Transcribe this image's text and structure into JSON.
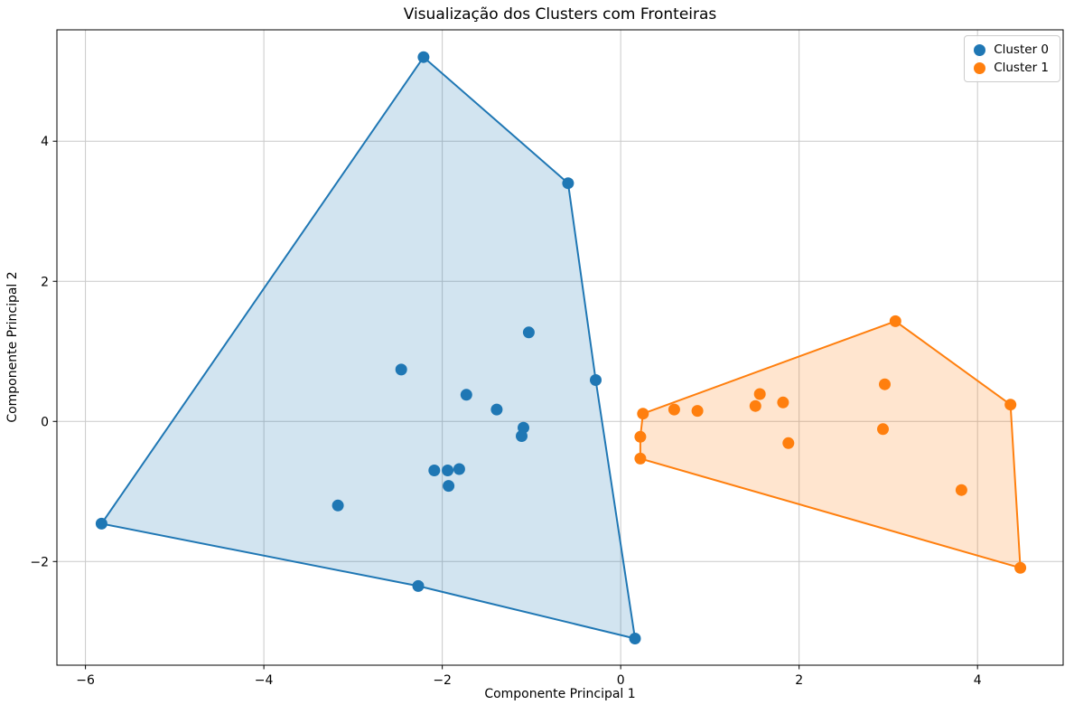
{
  "chart_data": {
    "type": "scatter",
    "title": "Visualização dos Clusters com Fronteiras",
    "xlabel": "Componente Principal 1",
    "ylabel": "Componente Principal 2",
    "xlim": [
      -6.32,
      4.96
    ],
    "ylim": [
      -3.48,
      5.59
    ],
    "grid": true,
    "legend_position": "upper right",
    "background_color": "#ffffff",
    "grid_color": "#c9c9c9",
    "spine_color": "#000000",
    "hull_fill_opacity": 0.2,
    "marker_radius": 6.5,
    "xticks": {
      "values": [
        -6,
        -4,
        -2,
        0,
        2,
        4
      ],
      "labels": [
        "−6",
        "−4",
        "−2",
        "0",
        "2",
        "4"
      ]
    },
    "yticks": {
      "values": [
        4,
        2,
        0,
        -2
      ],
      "labels": [
        "4",
        "2",
        "0",
        "−2"
      ]
    },
    "series": [
      {
        "name": "Cluster 0",
        "color": "#1f77b4",
        "points": [
          [
            -2.21,
            5.2
          ],
          [
            -0.59,
            3.4
          ],
          [
            -1.03,
            1.27
          ],
          [
            -2.46,
            0.74
          ],
          [
            -0.28,
            0.59
          ],
          [
            -1.73,
            0.38
          ],
          [
            -1.39,
            0.17
          ],
          [
            -1.09,
            -0.09
          ],
          [
            -1.11,
            -0.21
          ],
          [
            -2.09,
            -0.7
          ],
          [
            -1.94,
            -0.7
          ],
          [
            -1.81,
            -0.68
          ],
          [
            -1.93,
            -0.92
          ],
          [
            -3.17,
            -1.2
          ],
          [
            -5.82,
            -1.46
          ],
          [
            -2.27,
            -2.35
          ],
          [
            0.16,
            -3.1
          ]
        ],
        "hull": [
          [
            -2.21,
            5.2
          ],
          [
            -0.59,
            3.4
          ],
          [
            -0.28,
            0.59
          ],
          [
            0.16,
            -3.1
          ],
          [
            -2.27,
            -2.35
          ],
          [
            -5.82,
            -1.46
          ]
        ]
      },
      {
        "name": "Cluster 1",
        "color": "#ff7f0e",
        "points": [
          [
            0.25,
            0.11
          ],
          [
            0.22,
            -0.22
          ],
          [
            0.22,
            -0.53
          ],
          [
            0.6,
            0.17
          ],
          [
            0.86,
            0.15
          ],
          [
            1.51,
            0.22
          ],
          [
            1.56,
            0.39
          ],
          [
            1.82,
            0.27
          ],
          [
            1.88,
            -0.31
          ],
          [
            2.96,
            0.53
          ],
          [
            2.94,
            -0.11
          ],
          [
            3.08,
            1.43
          ],
          [
            4.37,
            0.24
          ],
          [
            3.82,
            -0.98
          ],
          [
            4.48,
            -2.09
          ]
        ],
        "hull": [
          [
            0.25,
            0.11
          ],
          [
            3.08,
            1.43
          ],
          [
            4.37,
            0.24
          ],
          [
            4.48,
            -2.09
          ],
          [
            0.22,
            -0.53
          ],
          [
            0.22,
            -0.22
          ]
        ]
      }
    ]
  }
}
